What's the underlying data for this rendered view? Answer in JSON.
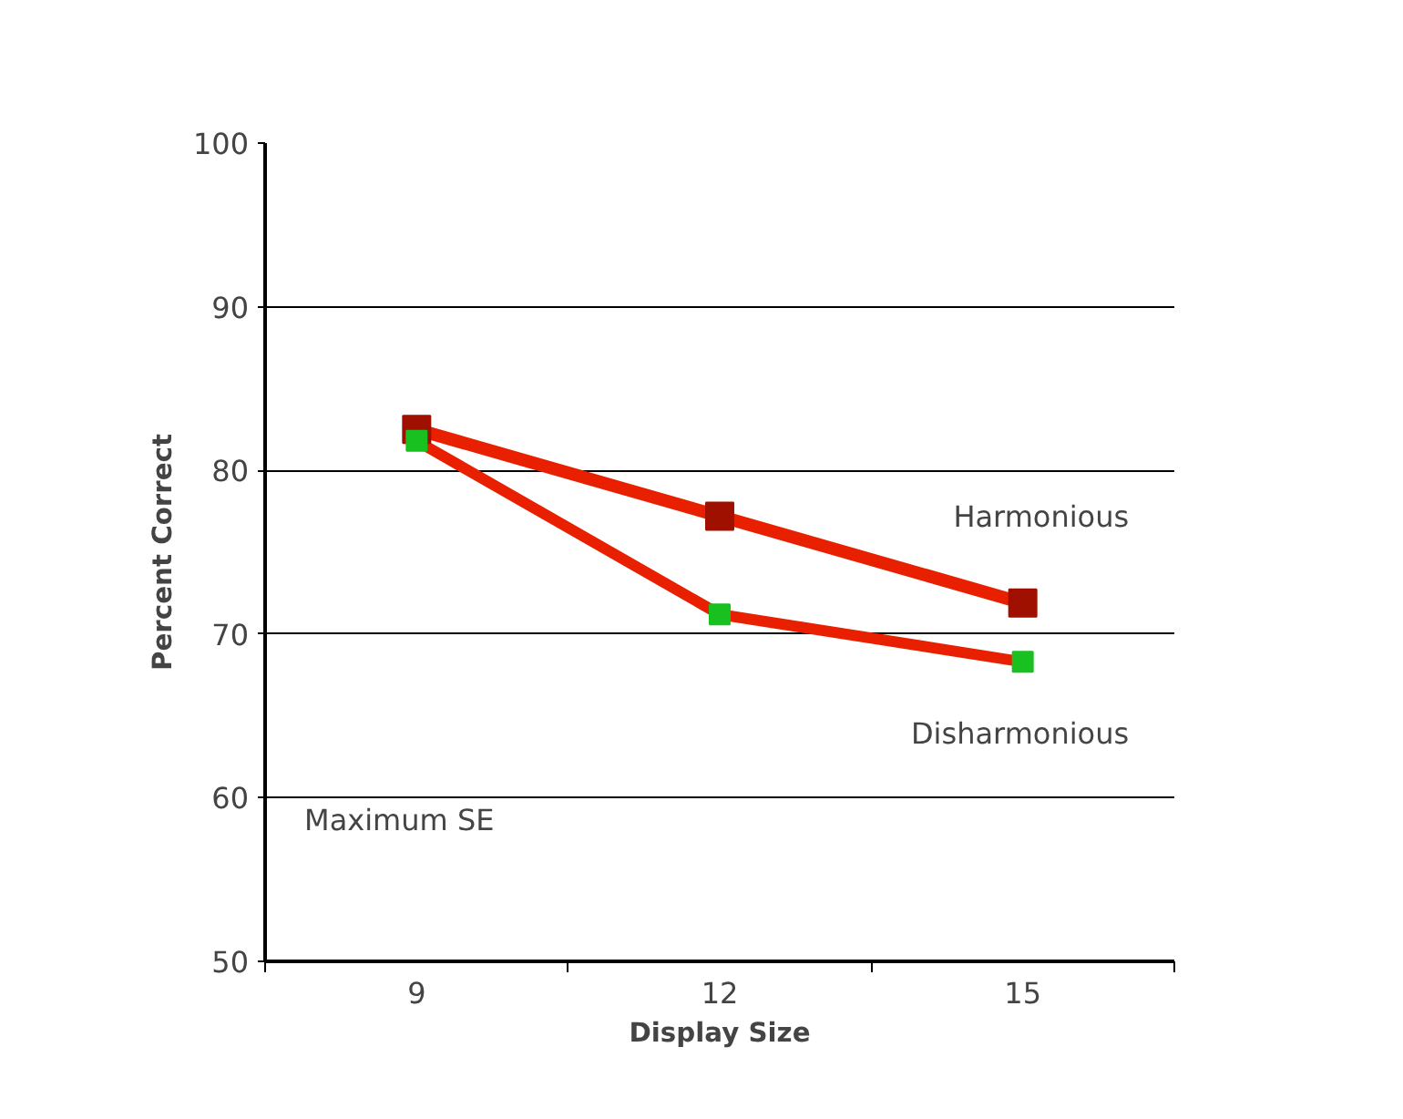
{
  "chart_data": {
    "type": "line",
    "categories": [
      "9",
      "12",
      "15"
    ],
    "xlabel": "Display Size",
    "ylabel": "Percent Correct",
    "ylim": [
      50,
      100
    ],
    "yticks": [
      50,
      60,
      70,
      80,
      90,
      100
    ],
    "grid": "y",
    "marker": "square",
    "line_style": "solid",
    "legend": false,
    "series": [
      {
        "name": "Harmonious",
        "color": "#e82000",
        "colors": [
          "#a01000",
          "#a01000",
          "#a01000"
        ],
        "values": [
          82.5,
          77.2,
          71.9
        ]
      },
      {
        "name": "Disharmonious",
        "color": "#e82000",
        "colors": [
          "#18c020",
          "#18c020",
          "#18c020"
        ],
        "values": [
          81.8,
          71.2,
          68.3
        ]
      }
    ],
    "annotations": [
      {
        "text": "Maximum SE"
      }
    ]
  }
}
